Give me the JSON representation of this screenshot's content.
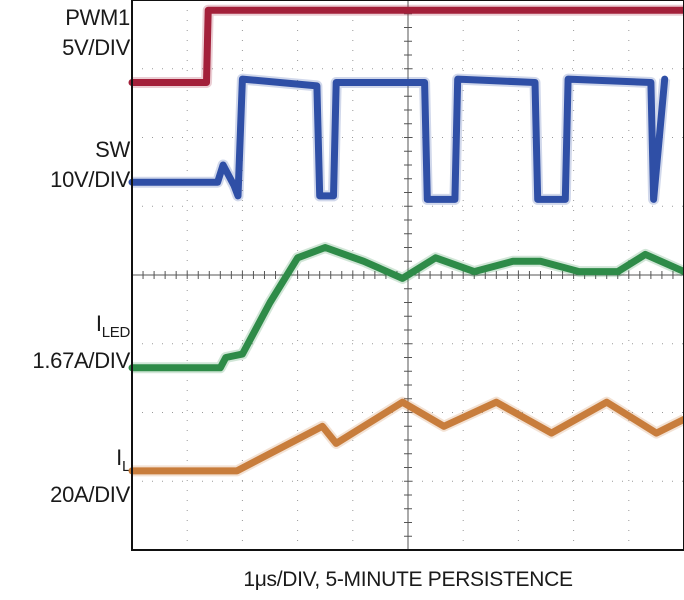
{
  "channels": [
    {
      "id": "pwm1",
      "name": "PWM1",
      "scale": "5V/DIV"
    },
    {
      "id": "sw",
      "name": "SW",
      "scale": "10V/DIV"
    },
    {
      "id": "iled",
      "name": "I",
      "subscript": "LED",
      "scale": "1.67A/DIV"
    },
    {
      "id": "il",
      "name": "I",
      "subscript": "L",
      "scale": "20A/DIV"
    }
  ],
  "caption": "1μs/DIV, 5-MINUTE PERSISTENCE",
  "chart_data": {
    "type": "line",
    "xlabel": "1μs/DIV, 5-MINUTE PERSISTENCE",
    "x_unit": "μs",
    "xlim": [
      0,
      10
    ],
    "ylim": [
      -4,
      4
    ],
    "ylabel": "",
    "grid": true,
    "colors": {
      "PWM1": "#a3203a",
      "SW": "#2f4fa6",
      "ILED": "#2e8b48",
      "IL": "#c87d3c"
    },
    "series": [
      {
        "name": "PWM1",
        "x": [
          0,
          1.35,
          1.38,
          10
        ],
        "y": [
          2.8,
          2.8,
          3.85,
          3.85
        ]
      },
      {
        "name": "SW",
        "x": [
          0,
          1.55,
          1.65,
          1.85,
          1.92,
          2.0,
          3.35,
          3.4,
          3.65,
          3.7,
          5.3,
          5.35,
          5.85,
          5.9,
          7.3,
          7.35,
          7.85,
          7.9,
          9.4,
          9.45,
          9.65
        ],
        "y": [
          1.35,
          1.35,
          1.6,
          1.3,
          1.15,
          2.85,
          2.75,
          1.15,
          1.15,
          2.8,
          2.8,
          1.1,
          1.1,
          2.85,
          2.8,
          1.1,
          1.1,
          2.85,
          2.8,
          1.1,
          2.85
        ]
      },
      {
        "name": "ILED",
        "x": [
          0,
          1.6,
          1.7,
          2.0,
          2.5,
          3.0,
          3.5,
          4.2,
          4.9,
          5.5,
          6.2,
          6.9,
          7.4,
          8.1,
          8.8,
          9.3,
          10
        ],
        "y": [
          -1.35,
          -1.35,
          -1.2,
          -1.15,
          -0.4,
          0.25,
          0.4,
          0.2,
          -0.05,
          0.25,
          0.05,
          0.2,
          0.2,
          0.05,
          0.05,
          0.3,
          0.05
        ]
      },
      {
        "name": "IL",
        "x": [
          0,
          1.9,
          3.45,
          3.7,
          4.9,
          5.65,
          6.6,
          7.6,
          8.6,
          9.5,
          10
        ],
        "y": [
          -2.85,
          -2.85,
          -2.2,
          -2.45,
          -1.85,
          -2.2,
          -1.85,
          -2.3,
          -1.85,
          -2.3,
          -2.1
        ]
      }
    ]
  }
}
